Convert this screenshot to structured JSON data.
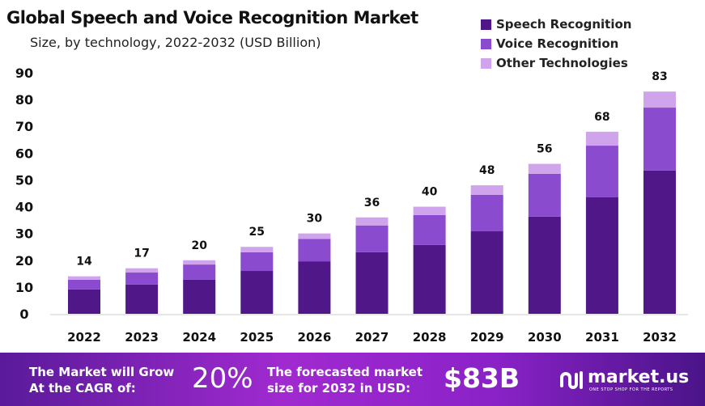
{
  "chart_data": {
    "type": "stacked-bar",
    "title": "Global Speech and Voice Recognition Market",
    "subtitle": "Size, by technology, 2022-2032 (USD Billion)",
    "categories": [
      "2022",
      "2023",
      "2024",
      "2025",
      "2026",
      "2027",
      "2028",
      "2029",
      "2030",
      "2031",
      "2032"
    ],
    "series": [
      {
        "name": "Speech Recognition",
        "color": "#4f1787",
        "values": [
          9.1,
          10.9,
          12.7,
          16.0,
          19.6,
          23.0,
          25.7,
          30.8,
          36.3,
          43.5,
          53.5
        ]
      },
      {
        "name": "Voice Recognition",
        "color": "#8b4bcf",
        "values": [
          3.6,
          4.5,
          5.7,
          7.0,
          8.4,
          10.0,
          11.2,
          13.6,
          16.0,
          19.3,
          23.5
        ]
      },
      {
        "name": "Other Technologies",
        "color": "#d0a4ec",
        "values": [
          1.3,
          1.6,
          1.6,
          2.0,
          2.0,
          3.0,
          3.1,
          3.6,
          3.7,
          5.2,
          6.0
        ]
      }
    ],
    "totals_labels": [
      "14",
      "17",
      "20",
      "25",
      "30",
      "36",
      "40",
      "48",
      "56",
      "68",
      "83"
    ],
    "totals": [
      14,
      17,
      20,
      25,
      30,
      36,
      40,
      48,
      56,
      68,
      83
    ],
    "y_ticks": [
      "0",
      "10",
      "20",
      "30",
      "40",
      "50",
      "60",
      "70",
      "80",
      "90"
    ],
    "ylim": [
      0,
      90
    ],
    "grid": false,
    "legend_position": "top-right"
  },
  "footer": {
    "cagr_text_1": "The Market will Grow",
    "cagr_text_2": "At the CAGR of:",
    "cagr_value": "20%",
    "forecast_text_1": "The forecasted market",
    "forecast_text_2": "size for 2032 in USD:",
    "forecast_value": "$83B",
    "brand": "market.us",
    "brand_tagline": "ONE STOP SHOP FOR THE REPORTS"
  }
}
